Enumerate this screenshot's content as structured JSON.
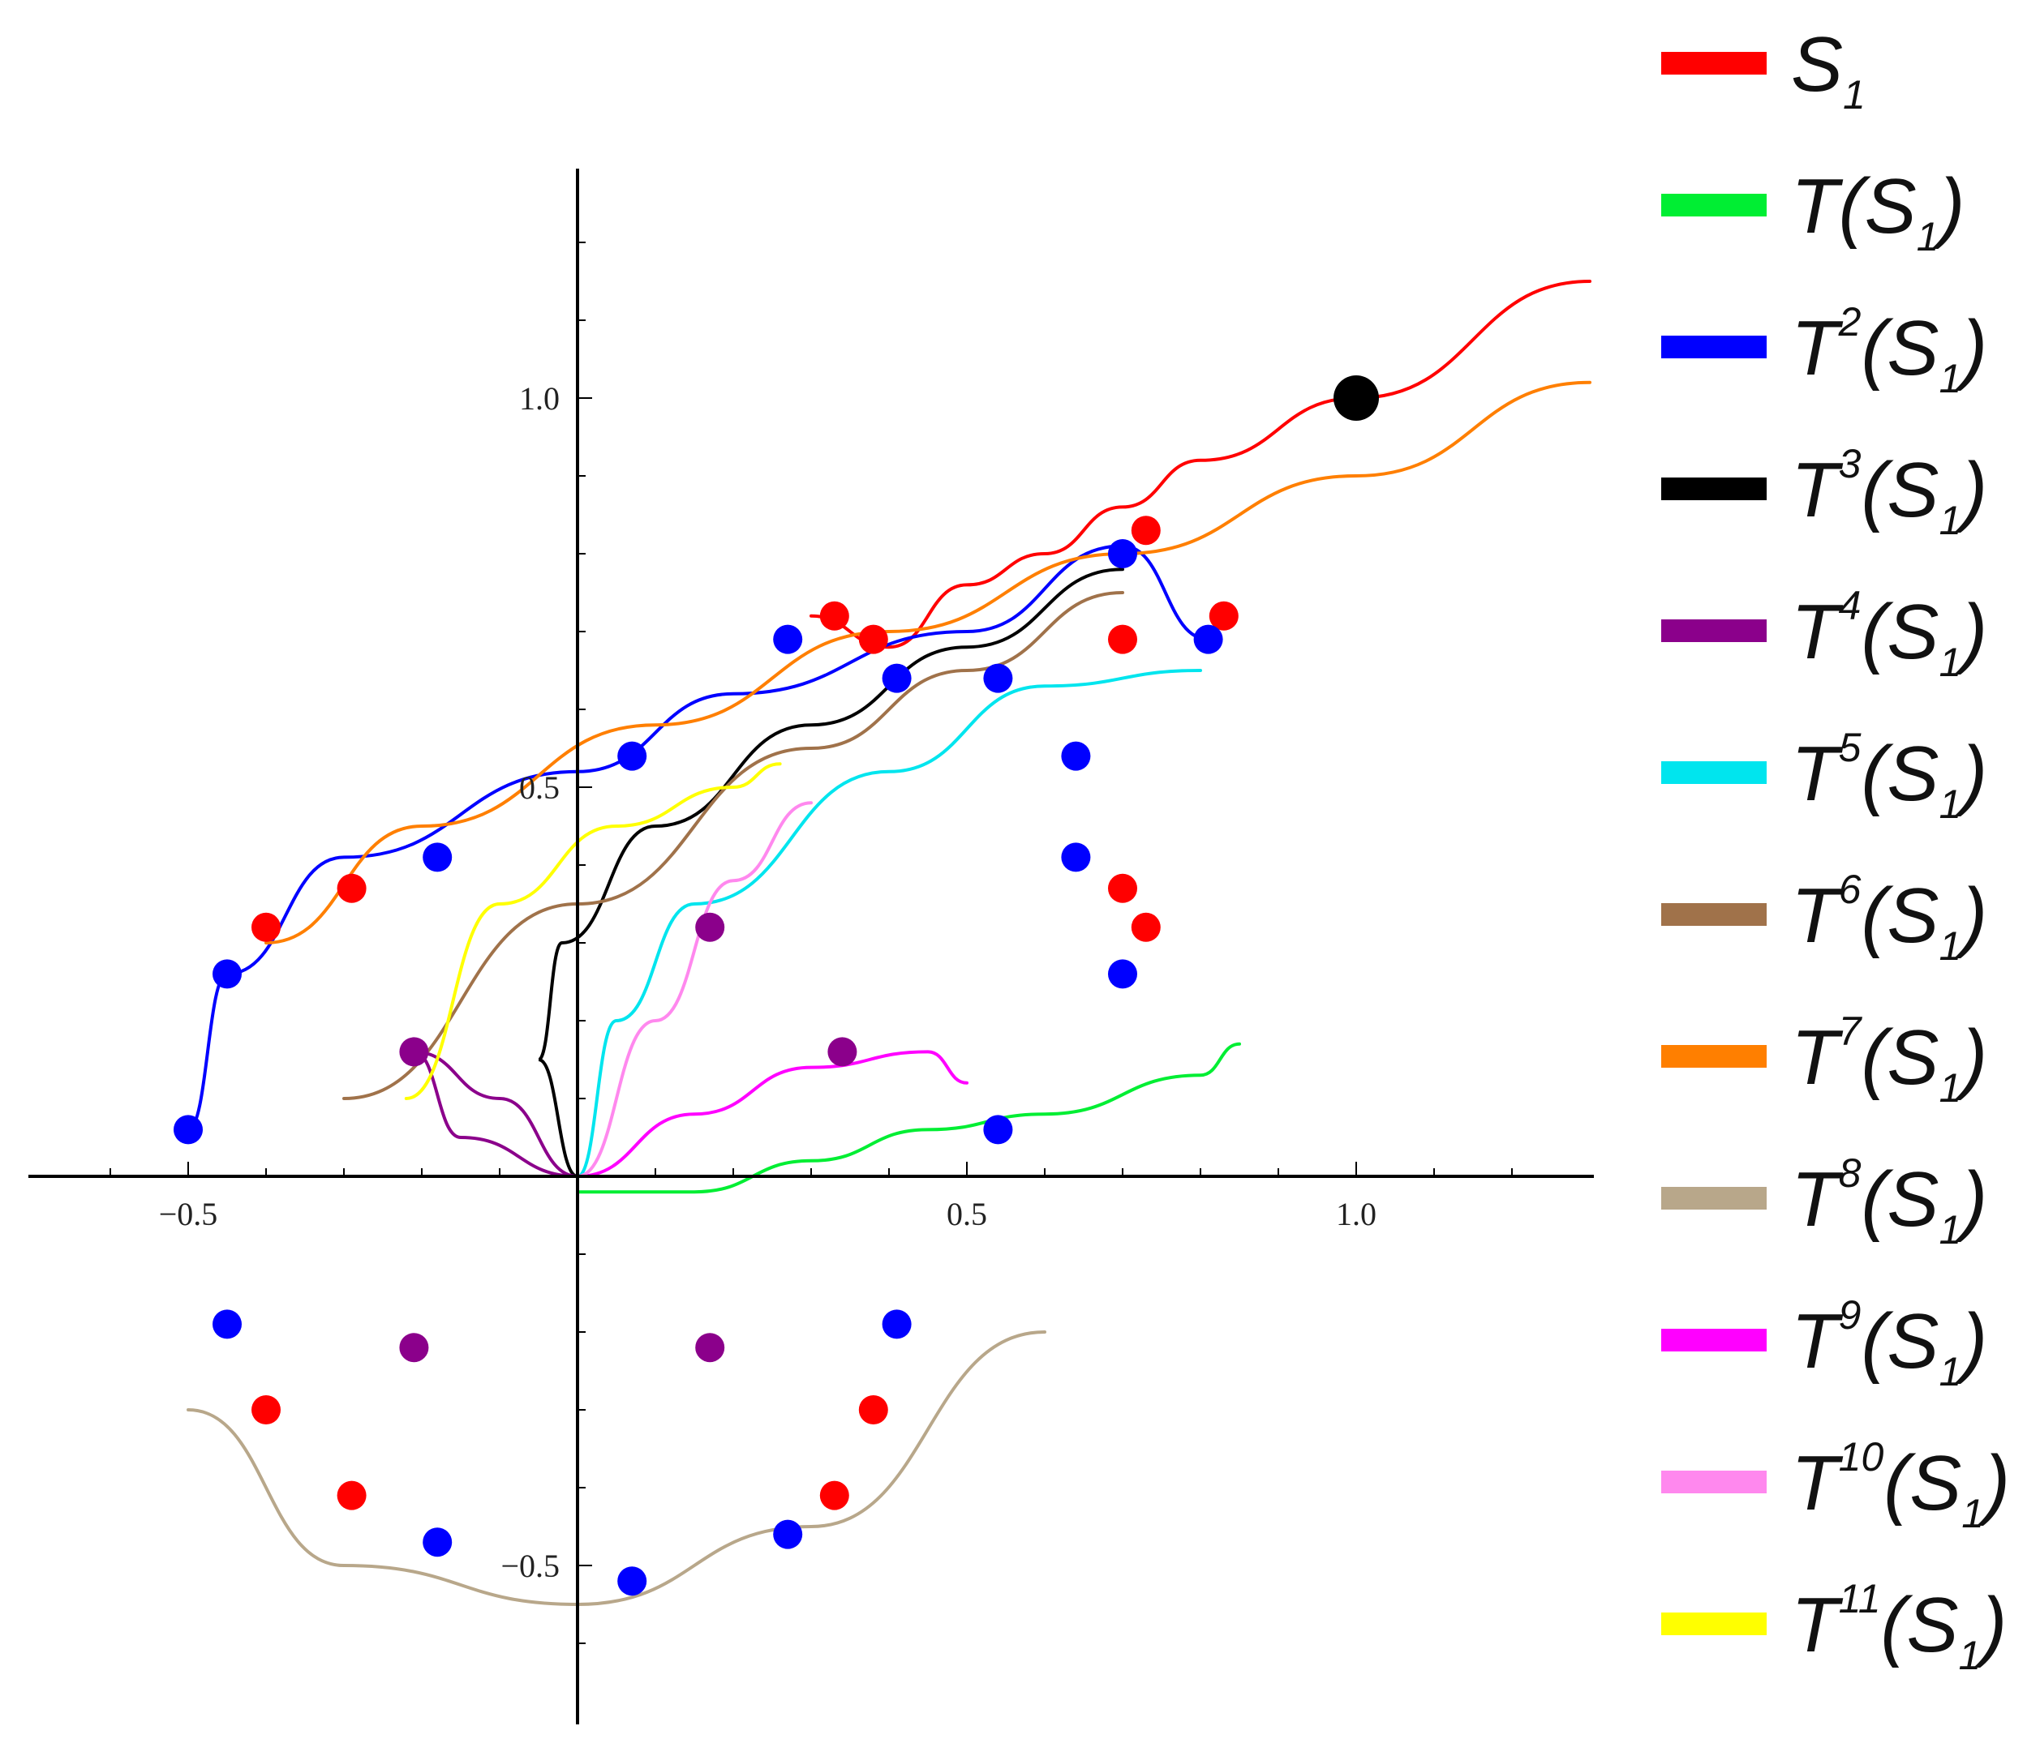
{
  "chart_data": {
    "type": "line",
    "title": "",
    "xlabel": "",
    "ylabel": "",
    "xlim": [
      -0.7,
      1.3
    ],
    "ylim": [
      -0.7,
      1.3
    ],
    "grid": false,
    "legend_position": "right",
    "x_ticks": [
      -0.5,
      0.5,
      1.0
    ],
    "x_tick_labels": [
      "−0.5",
      "0.5",
      "1.0"
    ],
    "y_ticks": [
      -0.5,
      0.5,
      1.0
    ],
    "y_tick_labels": [
      "−0.5",
      "0.5",
      "1.0"
    ],
    "fixed_point": {
      "x": 1.0,
      "y": 1.0,
      "color": "#000000"
    },
    "series": [
      {
        "name": "S",
        "sup": "",
        "sub": "1",
        "color": "#ff0000",
        "x": [
          0.3,
          0.4,
          0.5,
          0.6,
          0.7,
          0.8,
          1.0,
          1.3
        ],
        "y": [
          0.72,
          0.68,
          0.76,
          0.8,
          0.86,
          0.92,
          1.0,
          1.15
        ],
        "points": [
          [
            0.33,
            0.72
          ],
          [
            0.38,
            0.69
          ],
          [
            0.73,
            0.83
          ],
          [
            0.83,
            0.72
          ],
          [
            0.7,
            0.69
          ],
          [
            0.7,
            0.37
          ],
          [
            0.73,
            0.32
          ],
          [
            -0.29,
            0.37
          ],
          [
            -0.4,
            0.32
          ],
          [
            -0.4,
            -0.3
          ],
          [
            -0.29,
            -0.41
          ],
          [
            0.33,
            -0.41
          ],
          [
            0.38,
            -0.3
          ]
        ]
      },
      {
        "name": "T(S",
        "sup": "",
        "sub": "1",
        "color": "#00ee33",
        "x": [
          0.0,
          0.15,
          0.3,
          0.45,
          0.6,
          0.8,
          0.85
        ],
        "y": [
          -0.02,
          -0.02,
          0.02,
          0.06,
          0.08,
          0.13,
          0.17
        ],
        "points": []
      },
      {
        "name": "T",
        "sup": "2",
        "sub": "1",
        "color": "#0000ff",
        "x": [
          -0.5,
          -0.45,
          -0.3,
          0.0,
          0.2,
          0.5,
          0.7,
          0.81
        ],
        "y": [
          0.06,
          0.26,
          0.41,
          0.52,
          0.62,
          0.7,
          0.81,
          0.69
        ],
        "points": [
          [
            -0.5,
            0.06
          ],
          [
            -0.45,
            0.26
          ],
          [
            -0.18,
            0.41
          ],
          [
            0.07,
            0.54
          ],
          [
            0.27,
            0.69
          ],
          [
            0.41,
            0.64
          ],
          [
            0.54,
            0.64
          ],
          [
            0.7,
            0.8
          ],
          [
            0.81,
            0.69
          ],
          [
            0.64,
            0.54
          ],
          [
            0.64,
            0.41
          ],
          [
            0.7,
            0.26
          ],
          [
            0.54,
            0.06
          ],
          [
            -0.45,
            -0.19
          ],
          [
            0.41,
            -0.19
          ],
          [
            -0.18,
            -0.47
          ],
          [
            0.07,
            -0.52
          ],
          [
            0.27,
            -0.46
          ]
        ]
      },
      {
        "name": "T",
        "sup": "3",
        "sub": "1",
        "color": "#000000",
        "x": [
          0.0,
          -0.05,
          -0.02,
          0.1,
          0.3,
          0.5,
          0.7
        ],
        "y": [
          0.0,
          0.15,
          0.3,
          0.45,
          0.58,
          0.68,
          0.78
        ],
        "points": []
      },
      {
        "name": "T",
        "sup": "4",
        "sub": "1",
        "color": "#8b008b",
        "x": [
          0.0,
          -0.15,
          -0.21,
          -0.1,
          0.0
        ],
        "y": [
          0.0,
          0.05,
          0.16,
          0.1,
          0.0
        ],
        "points": [
          [
            -0.21,
            0.16
          ],
          [
            0.17,
            0.32
          ],
          [
            0.34,
            0.16
          ],
          [
            0.17,
            -0.22
          ],
          [
            -0.21,
            -0.22
          ]
        ]
      },
      {
        "name": "T",
        "sup": "5",
        "sub": "1",
        "color": "#00e5ee",
        "x": [
          0.0,
          0.05,
          0.15,
          0.4,
          0.6,
          0.8
        ],
        "y": [
          0.0,
          0.2,
          0.35,
          0.52,
          0.63,
          0.65
        ],
        "points": []
      },
      {
        "name": "T",
        "sup": "6",
        "sub": "1",
        "color": "#a0724a",
        "x": [
          -0.3,
          0.0,
          0.3,
          0.5,
          0.7
        ],
        "y": [
          0.1,
          0.35,
          0.55,
          0.65,
          0.75
        ],
        "points": []
      },
      {
        "name": "T",
        "sup": "7",
        "sub": "1",
        "color": "#ff7f00",
        "x": [
          -0.4,
          -0.2,
          0.1,
          0.4,
          0.7,
          1.0,
          1.3
        ],
        "y": [
          0.3,
          0.45,
          0.58,
          0.7,
          0.8,
          0.9,
          1.02
        ],
        "points": []
      },
      {
        "name": "T",
        "sup": "8",
        "sub": "1",
        "color": "#b8a78a",
        "x": [
          -0.5,
          -0.3,
          0.0,
          0.3,
          0.6
        ],
        "y": [
          -0.3,
          -0.5,
          -0.55,
          -0.45,
          -0.2
        ],
        "points": []
      },
      {
        "name": "T",
        "sup": "9",
        "sub": "1",
        "color": "#ff00ff",
        "x": [
          0.0,
          0.15,
          0.3,
          0.45,
          0.5
        ],
        "y": [
          0.0,
          0.08,
          0.14,
          0.16,
          0.12
        ],
        "points": []
      },
      {
        "name": "T",
        "sup": "10",
        "sub": "1",
        "color": "#ff88ee",
        "x": [
          0.0,
          0.1,
          0.2,
          0.3
        ],
        "y": [
          0.0,
          0.2,
          0.38,
          0.48
        ],
        "points": []
      },
      {
        "name": "T",
        "sup": "11",
        "sub": "1",
        "color": "#ffff00",
        "x": [
          -0.22,
          -0.1,
          0.05,
          0.2,
          0.26
        ],
        "y": [
          0.1,
          0.35,
          0.45,
          0.5,
          0.53
        ],
        "points": []
      }
    ]
  }
}
